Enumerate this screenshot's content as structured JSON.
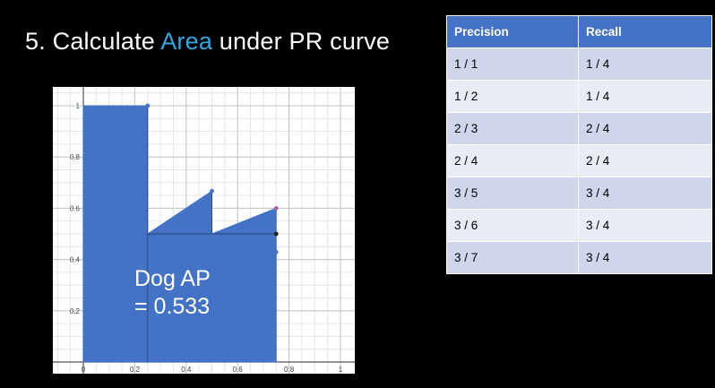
{
  "slide": {
    "title_prefix": "5. Calculate ",
    "title_accent": "Area",
    "title_suffix": " under PR curve",
    "accent_color": "#2ea8e0",
    "background": "#000000"
  },
  "ap_annotation": {
    "line1": "Dog AP",
    "line2": "= 0.533"
  },
  "table": {
    "headers": [
      "Precision",
      "Recall"
    ],
    "rows": [
      [
        "1 / 1",
        "1 / 4"
      ],
      [
        "1 / 2",
        "1 / 4"
      ],
      [
        "2 / 3",
        "2 / 4"
      ],
      [
        "2 / 4",
        "2 / 4"
      ],
      [
        "3 / 5",
        "3 / 4"
      ],
      [
        "3 / 6",
        "3 / 4"
      ],
      [
        "3 / 7",
        "3 / 4"
      ]
    ],
    "header_color": "#4472c4"
  },
  "chart_data": {
    "type": "area",
    "xlim": [
      0,
      1
    ],
    "ylim": [
      0,
      1
    ],
    "x_ticks": [
      "0",
      "0.2",
      "0.4",
      "0.6",
      "0.8",
      "1"
    ],
    "x_tick_values": [
      0,
      0.2,
      0.4,
      0.6,
      0.8,
      1
    ],
    "y_ticks": [
      "0.2",
      "0.4",
      "0.6",
      "0.8",
      "1"
    ],
    "y_tick_values": [
      0.2,
      0.4,
      0.6,
      0.8,
      1
    ],
    "grid": true,
    "fill_color": "#4472c4",
    "area_outline": [
      [
        0,
        1
      ],
      [
        0.25,
        1
      ],
      [
        0.25,
        0.5
      ],
      [
        0.5,
        0.667
      ],
      [
        0.5,
        0.5
      ],
      [
        0.75,
        0.6
      ],
      [
        0.75,
        0
      ]
    ],
    "points": [
      {
        "x": 0.25,
        "y": 1,
        "color": "#4472c4"
      },
      {
        "x": 0.5,
        "y": 0.667,
        "color": "#4472c4"
      },
      {
        "x": 0.75,
        "y": 0.6,
        "color": "#a05fa0"
      },
      {
        "x": 0.75,
        "y": 0.5,
        "color": "#222222"
      },
      {
        "x": 0.75,
        "y": 0.429,
        "color": "#4472c4"
      }
    ],
    "reference_line": {
      "y": 0.5,
      "x_from": 0.25,
      "x_to": 0.75
    }
  }
}
